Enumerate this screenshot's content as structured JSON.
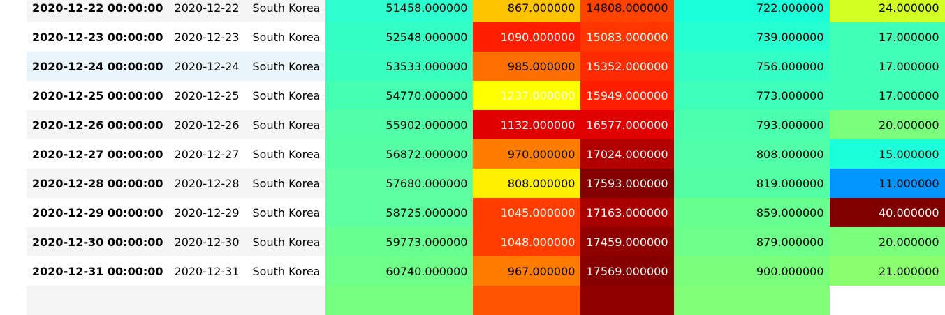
{
  "rows": [
    {
      "ts": "2020-12-22 00:00:00",
      "date": "2020-12-22",
      "country": "South Korea",
      "v1": "51458.000000",
      "v2": "867.000000",
      "v3": "14808.000000",
      "v4": "722.000000",
      "v5": "24.000000",
      "c1": "#2effd0",
      "c2": "#ffc400",
      "c3": "#ff4300",
      "c4": "#1cffdb",
      "c5": "#d3ff23",
      "t1": "#000000",
      "t2": "#000000",
      "t3": "#000000",
      "t4": "#000000",
      "t5": "#000000"
    },
    {
      "ts": "2020-12-23 00:00:00",
      "date": "2020-12-23",
      "country": "South Korea",
      "v1": "52548.000000",
      "v2": "1090.000000",
      "v3": "15083.000000",
      "v4": "739.000000",
      "v5": "17.000000",
      "c1": "#33ffc4",
      "c2": "#ff1e00",
      "c3": "#ff3600",
      "c4": "#26ffd0",
      "c5": "#40ffb7",
      "t1": "#000000",
      "t2": "#ffffff",
      "t3": "#ffffff",
      "t4": "#000000",
      "t5": "#000000"
    },
    {
      "ts": "2020-12-24 00:00:00",
      "date": "2020-12-24",
      "country": "South Korea",
      "v1": "53533.000000",
      "v2": "985.000000",
      "v3": "15352.000000",
      "v4": "756.000000",
      "v5": "17.000000",
      "c1": "#38ffbe",
      "c2": "#ff6f00",
      "c3": "#ff2a00",
      "c4": "#33ffc4",
      "c5": "#40ffb7",
      "t1": "#000000",
      "t2": "#000000",
      "t3": "#ffffff",
      "t4": "#000000",
      "t5": "#000000"
    },
    {
      "ts": "2020-12-25 00:00:00",
      "date": "2020-12-25",
      "country": "South Korea",
      "v1": "54770.000000",
      "v2": "1237.000000",
      "v3": "15949.000000",
      "v4": "773.000000",
      "v5": "17.000000",
      "c1": "#45ffb2",
      "c2": "#ffff00",
      "c3": "#ff1e00",
      "c4": "#3dffba",
      "c5": "#40ffb7",
      "t1": "#000000",
      "t2": "#ffffff",
      "t3": "#ffffff",
      "t4": "#000000",
      "t5": "#000000"
    },
    {
      "ts": "2020-12-26 00:00:00",
      "date": "2020-12-26",
      "country": "South Korea",
      "v1": "55902.000000",
      "v2": "1132.000000",
      "v3": "16577.000000",
      "v4": "793.000000",
      "v5": "20.000000",
      "c1": "#50ffa7",
      "c2": "#e00000",
      "c3": "#e10000",
      "c4": "#4affad",
      "c5": "#7aff7d",
      "t1": "#000000",
      "t2": "#ffffff",
      "t3": "#ffffff",
      "t4": "#000000",
      "t5": "#000000"
    },
    {
      "ts": "2020-12-27 00:00:00",
      "date": "2020-12-27",
      "country": "South Korea",
      "v1": "56872.000000",
      "v2": "970.000000",
      "v3": "17024.000000",
      "v4": "808.000000",
      "v5": "15.000000",
      "c1": "#54ffa3",
      "c2": "#ff7c00",
      "c3": "#b20000",
      "c4": "#50ffa7",
      "c5": "#1cffdb",
      "t1": "#000000",
      "t2": "#000000",
      "t3": "#ffffff",
      "t4": "#000000",
      "t5": "#000000"
    },
    {
      "ts": "2020-12-28 00:00:00",
      "date": "2020-12-28",
      "country": "South Korea",
      "v1": "57680.000000",
      "v2": "808.000000",
      "v3": "17593.000000",
      "v4": "819.000000",
      "v5": "11.000000",
      "c1": "#5effa0",
      "c2": "#fff000",
      "c3": "#840000",
      "c4": "#54ffa3",
      "c5": "#0095ff",
      "t1": "#000000",
      "t2": "#000000",
      "t3": "#ffffff",
      "t4": "#000000",
      "t5": "#000000"
    },
    {
      "ts": "2020-12-29 00:00:00",
      "date": "2020-12-29",
      "country": "South Korea",
      "v1": "58725.000000",
      "v2": "1045.000000",
      "v3": "17163.000000",
      "v4": "859.000000",
      "v5": "40.000000",
      "c1": "#5effa0",
      "c2": "#ff3d00",
      "c3": "#a80000",
      "c4": "#67ff90",
      "c5": "#800000",
      "t1": "#000000",
      "t2": "#ffffff",
      "t3": "#ffffff",
      "t4": "#000000",
      "t5": "#ffffff"
    },
    {
      "ts": "2020-12-30 00:00:00",
      "date": "2020-12-30",
      "country": "South Korea",
      "v1": "59773.000000",
      "v2": "1048.000000",
      "v3": "17459.000000",
      "v4": "879.000000",
      "v5": "20.000000",
      "c1": "#67ff90",
      "c2": "#ff3d00",
      "c3": "#8f0000",
      "c4": "#6dff8a",
      "c5": "#7aff7d",
      "t1": "#000000",
      "t2": "#ffffff",
      "t3": "#ffffff",
      "t4": "#000000",
      "t5": "#000000"
    },
    {
      "ts": "2020-12-31 00:00:00",
      "date": "2020-12-31",
      "country": "South Korea",
      "v1": "60740.000000",
      "v2": "967.000000",
      "v3": "17569.000000",
      "v4": "900.000000",
      "v5": "21.000000",
      "c1": "#6dff8a",
      "c2": "#ff7c00",
      "c3": "#860000",
      "c4": "#7aff7d",
      "c5": "#8aff6d",
      "t1": "#000000",
      "t2": "#000000",
      "t3": "#ffffff",
      "t4": "#000000",
      "t5": "#000000"
    },
    {
      "ts": "",
      "date": "",
      "country": "",
      "v1": "",
      "v2": "",
      "v3": "",
      "v4": "",
      "v5": "",
      "c1": "#77ff80",
      "c2": "#ff5400",
      "c3": "#900000",
      "c4": "#80ff77",
      "c5": "#ffffff",
      "t1": "#000000",
      "t2": "#000000",
      "t3": "#000000",
      "t4": "#000000",
      "t5": "#000000"
    }
  ]
}
